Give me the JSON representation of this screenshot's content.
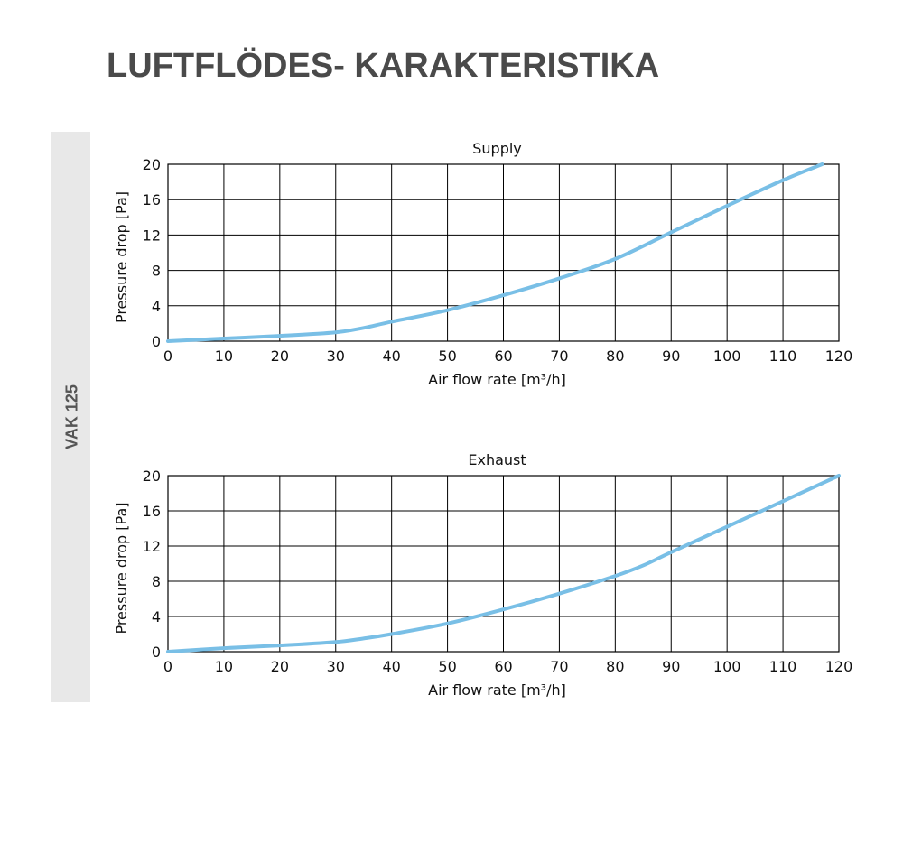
{
  "page": {
    "title": "LUFTFLÖDES- KARAKTERISTIKA",
    "side_label": "VAK 125"
  },
  "colors": {
    "curve": "#79bfe6",
    "grid": "#000000",
    "side_band": "#e8e8e8",
    "title": "#4a4a4a"
  },
  "chart_data": [
    {
      "type": "line",
      "title": "Supply",
      "xlabel": "Air flow rate [m³/h]",
      "ylabel": "Pressure drop [Pa]",
      "xlim": [
        0,
        120
      ],
      "ylim": [
        0,
        20
      ],
      "xticks": [
        0,
        10,
        20,
        30,
        40,
        50,
        60,
        70,
        80,
        90,
        100,
        110,
        120
      ],
      "yticks": [
        0,
        4,
        8,
        12,
        16,
        20
      ],
      "grid": true,
      "series": [
        {
          "x": [
            0,
            10,
            20,
            30,
            35,
            40,
            50,
            60,
            70,
            80,
            90,
            100,
            110,
            117
          ],
          "y": [
            0,
            0.3,
            0.6,
            1.0,
            1.5,
            2.2,
            3.5,
            5.2,
            7.1,
            9.3,
            12.3,
            15.3,
            18.2,
            20
          ]
        }
      ]
    },
    {
      "type": "line",
      "title": "Exhaust",
      "xlabel": "Air flow rate [m³/h]",
      "ylabel": "Pressure drop [Pa]",
      "xlim": [
        0,
        120
      ],
      "ylim": [
        0,
        20
      ],
      "xticks": [
        0,
        10,
        20,
        30,
        40,
        50,
        60,
        70,
        80,
        90,
        100,
        110,
        120
      ],
      "yticks": [
        0,
        4,
        8,
        12,
        16,
        20
      ],
      "grid": true,
      "series": [
        {
          "x": [
            0,
            10,
            20,
            30,
            35,
            40,
            50,
            60,
            70,
            80,
            85,
            90,
            100,
            110,
            120
          ],
          "y": [
            0,
            0.4,
            0.7,
            1.1,
            1.5,
            2.0,
            3.2,
            4.8,
            6.6,
            8.6,
            9.8,
            11.3,
            14.2,
            17.1,
            20
          ]
        }
      ]
    }
  ]
}
